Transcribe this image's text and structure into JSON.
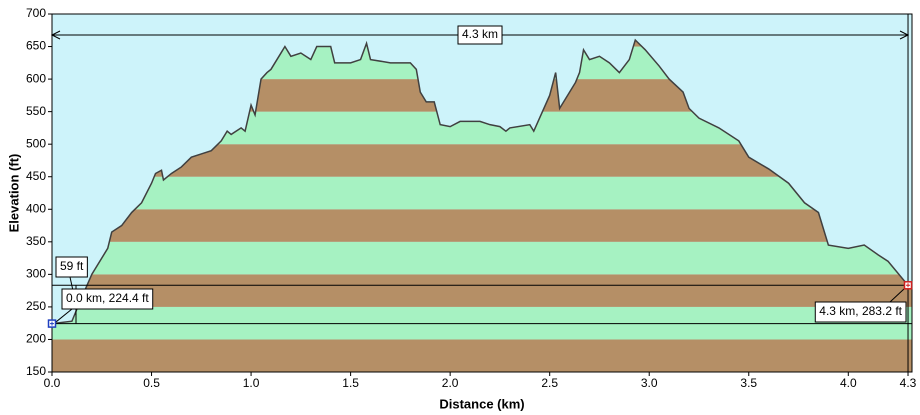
{
  "chart_data": {
    "type": "area",
    "xlabel": "Distance  (km)",
    "ylabel": "Elevation (ft)",
    "x": [
      0,
      0.1,
      0.15,
      0.2,
      0.28,
      0.3,
      0.35,
      0.4,
      0.45,
      0.5,
      0.52,
      0.55,
      0.56,
      0.6,
      0.65,
      0.7,
      0.75,
      0.8,
      0.85,
      0.88,
      0.9,
      0.95,
      0.97,
      1.0,
      1.02,
      1.05,
      1.08,
      1.1,
      1.15,
      1.17,
      1.2,
      1.25,
      1.3,
      1.33,
      1.4,
      1.42,
      1.5,
      1.55,
      1.58,
      1.6,
      1.7,
      1.8,
      1.83,
      1.85,
      1.88,
      1.92,
      1.95,
      2.0,
      2.05,
      2.15,
      2.2,
      2.25,
      2.28,
      2.3,
      2.4,
      2.42,
      2.5,
      2.53,
      2.55,
      2.6,
      2.63,
      2.65,
      2.67,
      2.7,
      2.75,
      2.8,
      2.85,
      2.9,
      2.93,
      2.98,
      3.05,
      3.1,
      3.17,
      3.2,
      3.25,
      3.35,
      3.45,
      3.5,
      3.6,
      3.7,
      3.78,
      3.85,
      3.9,
      4.0,
      4.08,
      4.15,
      4.2,
      4.3,
      4.32
    ],
    "values": [
      224.4,
      228,
      265,
      300,
      340,
      365,
      375,
      395,
      410,
      440,
      455,
      460,
      445,
      455,
      465,
      480,
      485,
      490,
      505,
      520,
      515,
      525,
      520,
      560,
      545,
      600,
      610,
      615,
      640,
      650,
      635,
      640,
      630,
      650,
      650,
      625,
      625,
      630,
      655,
      630,
      625,
      625,
      615,
      580,
      565,
      565,
      530,
      527,
      535,
      535,
      530,
      527,
      520,
      525,
      530,
      520,
      575,
      610,
      555,
      580,
      595,
      610,
      645,
      630,
      635,
      625,
      610,
      630,
      660,
      645,
      620,
      600,
      580,
      555,
      540,
      525,
      505,
      480,
      462,
      440,
      410,
      395,
      345,
      340,
      345,
      330,
      320,
      283.2,
      280
    ],
    "color": "#404040",
    "sky_color": "#cdf3fa",
    "band_colors": [
      "#b58f66",
      "#a6f2c2"
    ],
    "xlim": [
      0,
      4.32
    ],
    "ylim": [
      150,
      700
    ],
    "xticks": [
      {
        "value": 0,
        "label": "0.0"
      },
      0.5,
      {
        "value": 1,
        "label": "1.0"
      },
      1.5,
      {
        "value": 2,
        "label": "2.0"
      },
      2.5,
      {
        "value": 3,
        "label": "3.0"
      },
      3.5,
      {
        "value": 4,
        "label": "4.0"
      },
      4.3
    ],
    "yticks": [
      150,
      200,
      250,
      300,
      350,
      400,
      450,
      500,
      550,
      600,
      650,
      700
    ],
    "markers": [
      {
        "x": 0,
        "y": 224.4,
        "label": "0.0 km, 224.4 ft",
        "color": "#2040c0"
      },
      {
        "x": 4.3,
        "y": 283.2,
        "label": "4.3 km, 283.2 ft",
        "color": "#d02020"
      }
    ],
    "difference_label": "59 ft",
    "distance_label": "4.3 km"
  }
}
